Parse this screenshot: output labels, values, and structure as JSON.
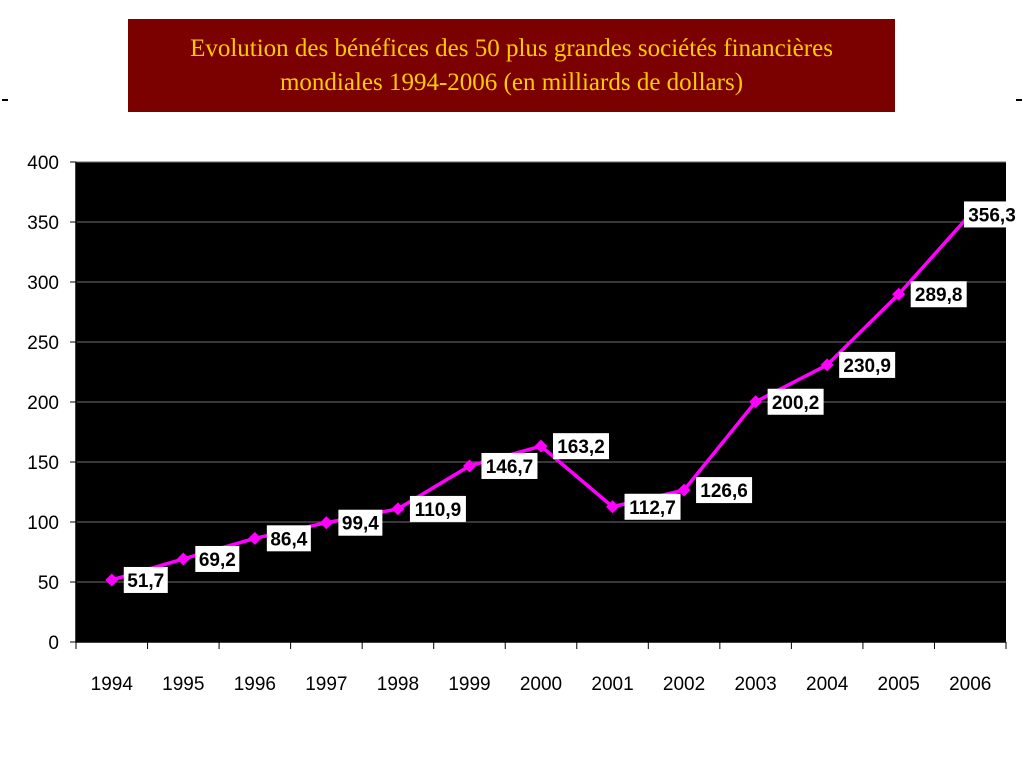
{
  "title": {
    "line1": "Evolution des bénéfices des 50 plus grandes sociétés financières",
    "line2": "mondiales 1994-2006 (en milliards de dollars)"
  },
  "colors": {
    "title_bg": "#7b0000",
    "title_text": "#ffcc00",
    "plot_bg": "#000000",
    "line": "#ff00ff",
    "gridline": "#6e6e6e"
  },
  "chart_data": {
    "type": "line",
    "title": "Evolution des bénéfices des 50 plus grandes sociétés financières mondiales 1994-2006 (en milliards de dollars)",
    "xlabel": "",
    "ylabel": "",
    "categories": [
      "1994",
      "1995",
      "1996",
      "1997",
      "1998",
      "1999",
      "2000",
      "2001",
      "2002",
      "2003",
      "2004",
      "2005",
      "2006"
    ],
    "values": [
      51.7,
      69.2,
      86.4,
      99.4,
      110.9,
      146.7,
      163.2,
      112.7,
      126.6,
      200.2,
      230.9,
      289.8,
      356.3
    ],
    "data_labels": [
      "51,7",
      "69,2",
      "86,4",
      "99,4",
      "110,9",
      "146,7",
      "163,2",
      "112,7",
      "126,6",
      "200,2",
      "230,9",
      "289,8",
      "356,3"
    ],
    "ylim": [
      0,
      400
    ],
    "yticks": [
      0,
      50,
      100,
      150,
      200,
      250,
      300,
      350,
      400
    ],
    "grid": true,
    "marker": "diamond"
  }
}
